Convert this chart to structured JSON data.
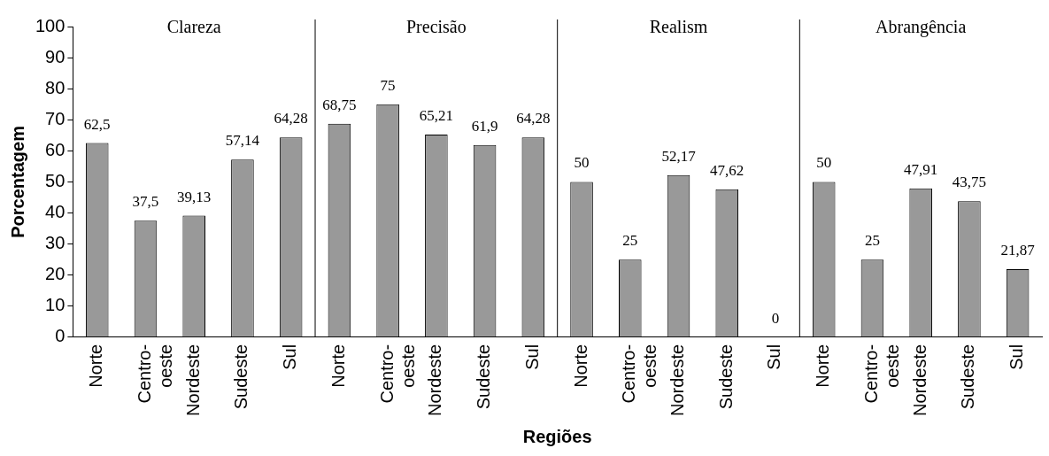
{
  "chart_data": {
    "type": "bar",
    "xlabel": "Regiões",
    "ylabel": "Porcentagem",
    "annotations": [
      "Clareza",
      "Precisão",
      "Realism",
      "Abrangência"
    ],
    "categories": [
      "Norte",
      "Centro-oeste",
      "Nordeste",
      "Sudeste",
      "Sul",
      "Norte",
      "Centro-oeste",
      "Nordeste",
      "Sudeste",
      "Sul",
      "Norte",
      "Centro-oeste",
      "Nordeste",
      "Sudeste",
      "Sul",
      "Norte",
      "Centro-oeste",
      "Nordeste",
      "Sudeste",
      "Sul"
    ],
    "values": [
      62.5,
      37.5,
      39.13,
      57.14,
      64.28,
      68.75,
      75,
      65.21,
      61.9,
      64.28,
      50,
      25,
      52.17,
      47.62,
      0,
      50,
      25,
      47.91,
      43.75,
      21.87
    ],
    "value_labels": [
      "62,5",
      "37,5",
      "39,13",
      "57,14",
      "64,28",
      "68,75",
      "75",
      "65,21",
      "61,9",
      "64,28",
      "50",
      "25",
      "52,17",
      "47,62",
      "0",
      "50",
      "25",
      "47,91",
      "43,75",
      "21,87"
    ],
    "color": "#999999",
    "ylim": [
      0,
      100
    ],
    "yticks": [
      0,
      10,
      20,
      30,
      40,
      50,
      60,
      70,
      80,
      90,
      100
    ],
    "grid": false,
    "legend": false
  }
}
